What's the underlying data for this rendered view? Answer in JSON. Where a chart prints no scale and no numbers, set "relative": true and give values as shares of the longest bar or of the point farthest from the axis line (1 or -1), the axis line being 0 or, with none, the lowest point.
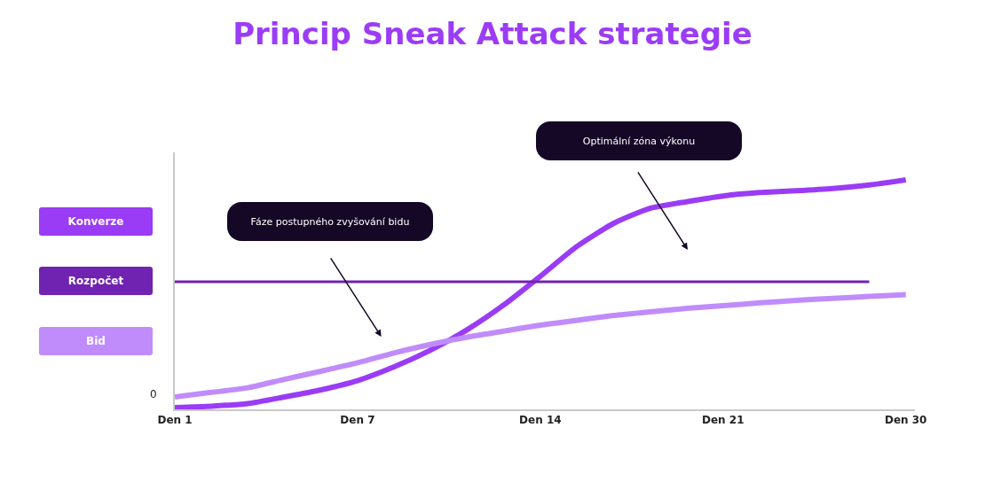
{
  "chart_data": {
    "type": "line",
    "title": "Princip Sneak Attack strategie",
    "relative": true,
    "legend": "left",
    "grid": false,
    "marker": "none",
    "categories": [
      "Den 1",
      null,
      null,
      null,
      null,
      "Den 7",
      null,
      null,
      null,
      null,
      "Den 14",
      null,
      null,
      null,
      null,
      "Den 21",
      null,
      null,
      null,
      null,
      "Den 30"
    ],
    "series": [
      {
        "name": "Konverze",
        "color": "#9a3cf5",
        "values": [
          0.008,
          0.014,
          0.025,
          0.054,
          0.085,
          0.125,
          0.185,
          0.258,
          0.347,
          0.455,
          0.58,
          0.71,
          0.81,
          0.876,
          0.905,
          0.93,
          0.945,
          0.953,
          0.963,
          0.978,
          1
        ]
      },
      {
        "name": "Rozpočet",
        "color": "#7022b0",
        "values": [
          0.556,
          0.556,
          0.556,
          0.556,
          0.556,
          0.556,
          0.556,
          0.556,
          0.556,
          0.556,
          0.556,
          0.556,
          0.556,
          0.556,
          0.556,
          0.556,
          0.556,
          0.556,
          0.556,
          0.556,
          null
        ]
      },
      {
        "name": "Bid",
        "color": "#c08cfb",
        "values": [
          0.054,
          0.074,
          0.094,
          0.131,
          0.166,
          0.203,
          0.246,
          0.283,
          0.315,
          0.341,
          0.367,
          0.388,
          0.409,
          0.425,
          0.44,
          0.452,
          0.464,
          0.475,
          0.484,
          0.492,
          0.5
        ]
      }
    ],
    "annotations": [
      "Fáze postupného zvyšování bidu",
      "Optimální zóna výkonu",
      "0"
    ]
  }
}
